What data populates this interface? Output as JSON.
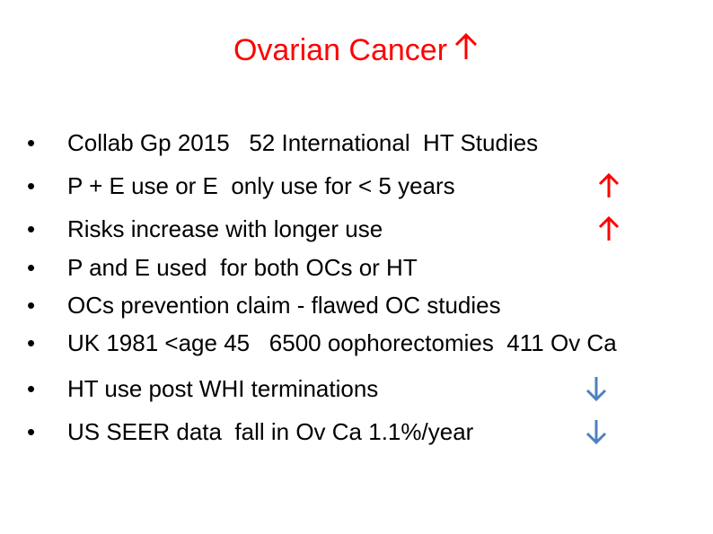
{
  "slide": {
    "title": "Ovarian Cancer",
    "bullet_char": "•",
    "colors": {
      "title": "#ff0000",
      "up_arrow": "#ff0000",
      "down_arrow": "#4f81bd",
      "text": "#000000"
    },
    "items": [
      {
        "text": "Collab Gp 2015   52 International  HT Studies",
        "arrow": ""
      },
      {
        "text": "P + E use or E  only use for < 5 years",
        "arrow": "up-arrow-icon"
      },
      {
        "text": "Risks increase with longer use",
        "arrow": "up-arrow-icon"
      },
      {
        "text": "P and E used  for both OCs or HT",
        "arrow": ""
      },
      {
        "text": "OCs prevention claim - flawed OC studies",
        "arrow": ""
      },
      {
        "text": "UK 1981 <age 45   6500 oophorectomies  411 Ov Ca",
        "arrow": ""
      },
      {
        "text": "HT use post WHI terminations",
        "arrow": "down-arrow-icon"
      },
      {
        "text": "US SEER data  fall in Ov Ca 1.1%/year",
        "arrow": "down-arrow-icon"
      }
    ]
  }
}
